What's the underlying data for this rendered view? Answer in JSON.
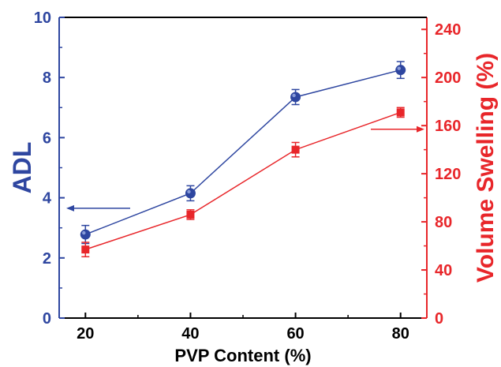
{
  "chart_data": {
    "type": "line",
    "xlabel": "PVP Content (%)",
    "categories": [
      20,
      40,
      60,
      80
    ],
    "x_ticks": [
      "20",
      "40",
      "60",
      "80"
    ],
    "xlim": [
      15,
      85
    ],
    "left_axis": {
      "label": "ADL",
      "color": "#2e46a0",
      "ylim": [
        0,
        10
      ],
      "ticks": [
        "0",
        "2",
        "4",
        "6",
        "8",
        "10"
      ]
    },
    "right_axis": {
      "label": "Volume Swelling (%)",
      "color": "#e8262a",
      "ylim": [
        0,
        250
      ],
      "ticks": [
        "0",
        "40",
        "80",
        "120",
        "160",
        "200",
        "240"
      ]
    },
    "series": [
      {
        "axis": "left",
        "marker": "circle",
        "color": "#2e46a0",
        "values": [
          2.78,
          4.15,
          7.35,
          8.25
        ],
        "errors": [
          0.3,
          0.25,
          0.25,
          0.28
        ]
      },
      {
        "axis": "right",
        "marker": "square",
        "color": "#e8262a",
        "values": [
          57,
          86,
          140,
          171
        ],
        "errors": [
          6,
          4,
          6,
          4
        ]
      }
    ],
    "annotations": [
      {
        "type": "arrow",
        "points_to": "left axis",
        "color": "#2e46a0"
      },
      {
        "type": "arrow",
        "points_to": "right axis",
        "color": "#e8262a"
      }
    ],
    "grid": false
  }
}
